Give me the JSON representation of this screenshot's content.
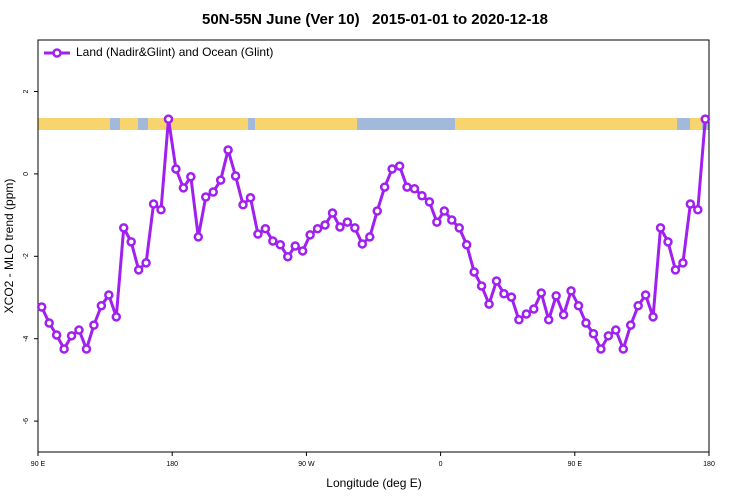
{
  "chart_data": {
    "type": "line",
    "title": "50N-55N June (Ver 10)   2015-01-01 to 2020-12-18",
    "x_label": "Longitude (deg E)",
    "y_label": "XCO2 - MLO trend (ppm)",
    "xlim": [
      90,
      540
    ],
    "xticks": [
      {
        "value": 90,
        "label": "90 E"
      },
      {
        "value": 180,
        "label": "180"
      },
      {
        "value": 270,
        "label": "90 W"
      },
      {
        "value": 360,
        "label": "0"
      },
      {
        "value": 450,
        "label": "90 E"
      },
      {
        "value": 540,
        "label": "180"
      }
    ],
    "ylim": [
      -6.75,
      3.25
    ],
    "yticks": [
      2,
      0,
      -2,
      -4,
      -6
    ],
    "legend": "top-left",
    "x": [
      92.5,
      97.5,
      102.5,
      107.5,
      112.5,
      117.5,
      122.5,
      127.5,
      132.5,
      137.5,
      142.5,
      147.5,
      152.5,
      157.5,
      162.5,
      167.5,
      172.5,
      177.5,
      182.5,
      187.5,
      192.5,
      197.5,
      202.5,
      207.5,
      212.5,
      217.5,
      222.5,
      227.5,
      232.5,
      237.5,
      242.5,
      247.5,
      252.5,
      257.5,
      262.5,
      267.5,
      272.5,
      277.5,
      282.5,
      287.5,
      292.5,
      297.5,
      302.5,
      307.5,
      312.5,
      317.5,
      322.5,
      327.5,
      332.5,
      337.5,
      342.5,
      347.5,
      352.5,
      357.5,
      362.5,
      367.5,
      372.5,
      377.5,
      382.5,
      387.5,
      392.5,
      397.5,
      402.5,
      407.5,
      412.5,
      417.5,
      422.5,
      427.5,
      432.5,
      437.5,
      442.5,
      447.5,
      452.5,
      457.5,
      462.5,
      467.5,
      472.5,
      477.5,
      482.5,
      487.5,
      492.5,
      497.5,
      502.5,
      507.5,
      512.5,
      517.5,
      522.5,
      527.5,
      532.5,
      537.5
    ],
    "series": [
      {
        "name": "Land (Nadir&Glint) and Ocean (Glint)",
        "color": "#a020f0",
        "values": [
          -3.23,
          -3.62,
          -3.91,
          -4.25,
          -3.93,
          -3.79,
          -4.25,
          -3.67,
          -3.2,
          -2.94,
          -3.47,
          -1.31,
          -1.65,
          -2.33,
          -2.16,
          -0.73,
          -0.87,
          1.33,
          0.12,
          -0.34,
          -0.07,
          -1.53,
          -0.56,
          -0.44,
          -0.15,
          0.58,
          -0.05,
          -0.75,
          -0.58,
          -1.46,
          -1.33,
          -1.63,
          -1.72,
          -2.01,
          -1.75,
          -1.87,
          -1.48,
          -1.33,
          -1.24,
          -0.95,
          -1.29,
          -1.17,
          -1.31,
          -1.7,
          -1.53,
          -0.9,
          -0.32,
          0.12,
          0.19,
          -0.32,
          -0.36,
          -0.53,
          -0.68,
          -1.17,
          -0.9,
          -1.12,
          -1.31,
          -1.72,
          -2.38,
          -2.72,
          -3.16,
          -2.6,
          -2.91,
          -2.99,
          -3.54,
          -3.4,
          -3.28,
          -2.89,
          -3.54,
          -2.96,
          -3.42,
          -2.84,
          -3.2,
          -3.62,
          -3.88,
          -4.25,
          -3.93,
          -3.79,
          -4.25,
          -3.67,
          -3.2,
          -2.94,
          -3.47,
          -1.31,
          -1.65,
          -2.33,
          -2.16,
          -0.73,
          -0.87,
          1.33
        ]
      }
    ]
  }
}
